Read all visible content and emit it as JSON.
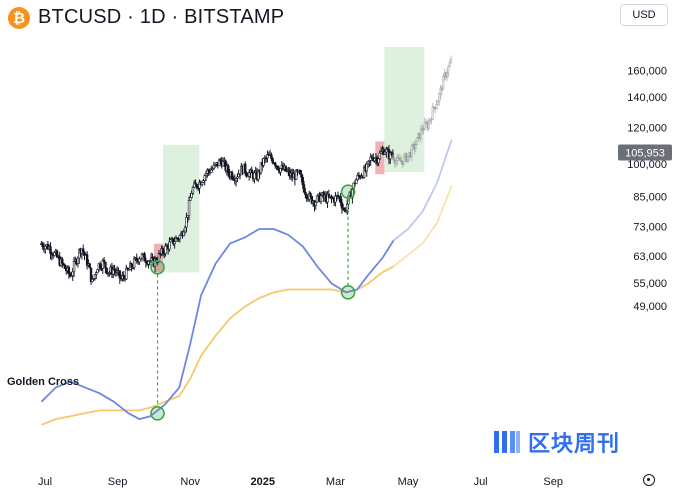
{
  "header": {
    "coin_symbol": "₿",
    "title": "BTCUSD · 1D · BITSTAMP",
    "currency": "USD"
  },
  "colors": {
    "candle": "#131722",
    "green_zone": "#d8eed8",
    "red_zone": "#f4a7a8",
    "ma_fast": "#6d88e0",
    "ma_slow": "#f5c96b",
    "marker": "#3fa34d",
    "price_tag": "#6b6f78"
  },
  "annotations": {
    "golden_cross_label": "Golden Cross"
  },
  "watermark": {
    "text": "区块周刊",
    "icon": "stacked-bars-logo-icon"
  },
  "chart_data": {
    "type": "candlestick",
    "title": "BTCUSD · 1D · BITSTAMP",
    "y_scale": "log",
    "y_ticks": [
      49000,
      55000,
      63000,
      73000,
      85000,
      100000,
      120000,
      140000,
      160000
    ],
    "y_tick_labels": [
      "49,000",
      "55,000",
      "63,000",
      "73,000",
      "85,000",
      "100,000",
      "120,000",
      "140,000",
      "160,000"
    ],
    "last_price_label": "105,953",
    "last_price": 105953,
    "x_labels": [
      "Jul",
      "Sep",
      "Nov",
      "2025",
      "Mar",
      "May",
      "Jul",
      "Sep"
    ],
    "x_label_months": [
      6,
      8,
      10,
      12,
      14,
      16,
      18,
      20
    ],
    "price_anchors": [
      {
        "m": 5.9,
        "v": 67000
      },
      {
        "m": 6.1,
        "v": 66000
      },
      {
        "m": 6.3,
        "v": 63000
      },
      {
        "m": 6.5,
        "v": 60000
      },
      {
        "m": 6.7,
        "v": 57000
      },
      {
        "m": 6.9,
        "v": 63000
      },
      {
        "m": 7.0,
        "v": 66000
      },
      {
        "m": 7.2,
        "v": 60000
      },
      {
        "m": 7.3,
        "v": 55000
      },
      {
        "m": 7.45,
        "v": 60000
      },
      {
        "m": 7.6,
        "v": 61000
      },
      {
        "m": 7.75,
        "v": 58000
      },
      {
        "m": 7.9,
        "v": 59000
      },
      {
        "m": 8.1,
        "v": 56000
      },
      {
        "m": 8.25,
        "v": 58000
      },
      {
        "m": 8.4,
        "v": 60000
      },
      {
        "m": 8.6,
        "v": 63000
      },
      {
        "m": 8.8,
        "v": 62000
      },
      {
        "m": 9.0,
        "v": 61000
      },
      {
        "m": 9.15,
        "v": 63000
      },
      {
        "m": 9.35,
        "v": 66000
      },
      {
        "m": 9.55,
        "v": 68000
      },
      {
        "m": 9.75,
        "v": 70000
      },
      {
        "m": 9.9,
        "v": 76000
      },
      {
        "m": 10.05,
        "v": 88000
      },
      {
        "m": 10.25,
        "v": 91000
      },
      {
        "m": 10.45,
        "v": 96000
      },
      {
        "m": 10.65,
        "v": 98000
      },
      {
        "m": 10.85,
        "v": 102000
      },
      {
        "m": 11.05,
        "v": 96000
      },
      {
        "m": 11.25,
        "v": 94000
      },
      {
        "m": 11.45,
        "v": 98000
      },
      {
        "m": 11.65,
        "v": 95000
      },
      {
        "m": 11.85,
        "v": 94000
      },
      {
        "m": 12.0,
        "v": 101000
      },
      {
        "m": 12.15,
        "v": 104000
      },
      {
        "m": 12.3,
        "v": 102000
      },
      {
        "m": 12.45,
        "v": 98000
      },
      {
        "m": 12.6,
        "v": 97000
      },
      {
        "m": 12.8,
        "v": 94000
      },
      {
        "m": 13.0,
        "v": 95000
      },
      {
        "m": 13.15,
        "v": 88000
      },
      {
        "m": 13.3,
        "v": 84000
      },
      {
        "m": 13.45,
        "v": 83000
      },
      {
        "m": 13.6,
        "v": 85000
      },
      {
        "m": 13.8,
        "v": 84000
      },
      {
        "m": 13.95,
        "v": 84000
      },
      {
        "m": 14.1,
        "v": 85000
      },
      {
        "m": 14.25,
        "v": 79000
      },
      {
        "m": 14.4,
        "v": 85000
      },
      {
        "m": 14.55,
        "v": 92000
      },
      {
        "m": 14.7,
        "v": 95000
      },
      {
        "m": 14.85,
        "v": 97000
      },
      {
        "m": 15.0,
        "v": 104000
      },
      {
        "m": 15.15,
        "v": 103000
      },
      {
        "m": 15.35,
        "v": 108000
      },
      {
        "m": 15.5,
        "v": 104000
      },
      {
        "m": 15.6,
        "v": 106000
      }
    ],
    "projection_anchors": [
      {
        "m": 15.6,
        "v": 104000
      },
      {
        "m": 15.7,
        "v": 101000
      },
      {
        "m": 15.85,
        "v": 102000
      },
      {
        "m": 16.0,
        "v": 104000
      },
      {
        "m": 16.2,
        "v": 110000
      },
      {
        "m": 16.4,
        "v": 120000
      },
      {
        "m": 16.55,
        "v": 122000
      },
      {
        "m": 16.7,
        "v": 132000
      },
      {
        "m": 16.85,
        "v": 140000
      },
      {
        "m": 17.0,
        "v": 155000
      },
      {
        "m": 17.15,
        "v": 165000
      },
      {
        "m": 17.2,
        "v": 168000
      }
    ],
    "ma_fast": [
      {
        "m": 5.9,
        "v": 15
      },
      {
        "m": 6.3,
        "v": 20
      },
      {
        "m": 6.7,
        "v": 22
      },
      {
        "m": 7.1,
        "v": 20
      },
      {
        "m": 7.5,
        "v": 18
      },
      {
        "m": 7.9,
        "v": 15
      },
      {
        "m": 8.3,
        "v": 11
      },
      {
        "m": 8.6,
        "v": 9
      },
      {
        "m": 8.9,
        "v": 10
      },
      {
        "m": 9.3,
        "v": 14
      },
      {
        "m": 9.7,
        "v": 20
      },
      {
        "m": 10.0,
        "v": 35
      },
      {
        "m": 10.3,
        "v": 52
      },
      {
        "m": 10.7,
        "v": 63
      },
      {
        "m": 11.1,
        "v": 70
      },
      {
        "m": 11.5,
        "v": 72
      },
      {
        "m": 11.9,
        "v": 75
      },
      {
        "m": 12.3,
        "v": 75
      },
      {
        "m": 12.7,
        "v": 73
      },
      {
        "m": 13.1,
        "v": 69
      },
      {
        "m": 13.5,
        "v": 62
      },
      {
        "m": 13.9,
        "v": 56
      },
      {
        "m": 14.3,
        "v": 53
      },
      {
        "m": 14.6,
        "v": 54
      },
      {
        "m": 14.9,
        "v": 59
      },
      {
        "m": 15.3,
        "v": 65
      },
      {
        "m": 15.6,
        "v": 71
      }
    ],
    "ma_fast_projection": [
      {
        "m": 15.6,
        "v": 71
      },
      {
        "m": 16.0,
        "v": 75
      },
      {
        "m": 16.4,
        "v": 81
      },
      {
        "m": 16.8,
        "v": 91
      },
      {
        "m": 17.2,
        "v": 106
      }
    ],
    "ma_slow": [
      {
        "m": 5.9,
        "v": 7
      },
      {
        "m": 6.3,
        "v": 9
      },
      {
        "m": 6.7,
        "v": 10
      },
      {
        "m": 7.1,
        "v": 11
      },
      {
        "m": 7.5,
        "v": 12
      },
      {
        "m": 7.9,
        "v": 12
      },
      {
        "m": 8.3,
        "v": 12
      },
      {
        "m": 8.6,
        "v": 12
      },
      {
        "m": 8.9,
        "v": 13
      },
      {
        "m": 9.3,
        "v": 15
      },
      {
        "m": 9.7,
        "v": 17
      },
      {
        "m": 10.0,
        "v": 23
      },
      {
        "m": 10.3,
        "v": 31
      },
      {
        "m": 10.7,
        "v": 38
      },
      {
        "m": 11.1,
        "v": 44
      },
      {
        "m": 11.5,
        "v": 48
      },
      {
        "m": 11.9,
        "v": 51
      },
      {
        "m": 12.3,
        "v": 53
      },
      {
        "m": 12.7,
        "v": 54
      },
      {
        "m": 13.1,
        "v": 54
      },
      {
        "m": 13.5,
        "v": 54
      },
      {
        "m": 13.9,
        "v": 54
      },
      {
        "m": 14.3,
        "v": 53
      },
      {
        "m": 14.6,
        "v": 54
      },
      {
        "m": 14.9,
        "v": 56
      },
      {
        "m": 15.3,
        "v": 60
      },
      {
        "m": 15.6,
        "v": 62
      }
    ],
    "ma_slow_projection": [
      {
        "m": 15.6,
        "v": 62
      },
      {
        "m": 16.0,
        "v": 66
      },
      {
        "m": 16.4,
        "v": 70
      },
      {
        "m": 16.8,
        "v": 77
      },
      {
        "m": 17.2,
        "v": 90
      }
    ],
    "highlight_zones": [
      {
        "kind": "red",
        "m0": 9.0,
        "m1": 9.25,
        "v_low": 58000,
        "v_high": 67000
      },
      {
        "kind": "green",
        "m0": 9.25,
        "m1": 10.25,
        "v_low": 58000,
        "v_high": 110000
      },
      {
        "kind": "red",
        "m0": 15.1,
        "m1": 15.35,
        "v_low": 95000,
        "v_high": 112000
      },
      {
        "kind": "green",
        "m0": 15.35,
        "m1": 16.45,
        "v_low": 96000,
        "v_high": 180000
      }
    ],
    "golden_cross_markers": [
      {
        "m": 9.1,
        "price": 59500,
        "ma_level": 11
      },
      {
        "m": 14.35,
        "price": 87000,
        "ma_level": 53
      }
    ]
  }
}
